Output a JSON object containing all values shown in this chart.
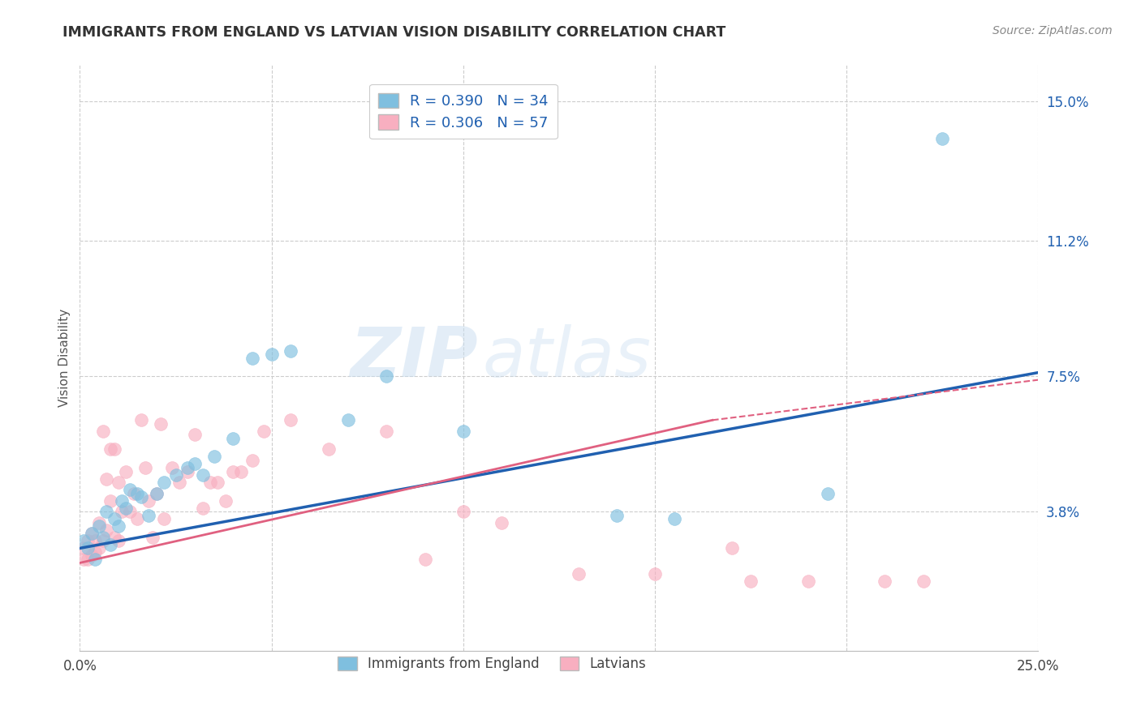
{
  "title": "IMMIGRANTS FROM ENGLAND VS LATVIAN VISION DISABILITY CORRELATION CHART",
  "source": "Source: ZipAtlas.com",
  "ylabel": "Vision Disability",
  "xlim": [
    0.0,
    0.25
  ],
  "ylim": [
    0.0,
    0.16
  ],
  "xtick_vals": [
    0.0,
    0.05,
    0.1,
    0.15,
    0.2,
    0.25
  ],
  "xtick_labels": [
    "0.0%",
    "",
    "",
    "",
    "",
    "25.0%"
  ],
  "ytick_labels_right": [
    "15.0%",
    "11.2%",
    "7.5%",
    "3.8%"
  ],
  "ytick_vals_right": [
    0.15,
    0.112,
    0.075,
    0.038
  ],
  "blue_R": 0.39,
  "blue_N": 34,
  "pink_R": 0.306,
  "pink_N": 57,
  "blue_color": "#7fbfdf",
  "pink_color": "#f8afc0",
  "blue_line_color": "#2060b0",
  "pink_line_color": "#e06080",
  "blue_line": {
    "x0": 0.0,
    "y0": 0.028,
    "x1": 0.25,
    "y1": 0.076
  },
  "pink_line_solid": {
    "x0": 0.0,
    "y0": 0.024,
    "x1": 0.165,
    "y1": 0.063
  },
  "pink_line_dashed": {
    "x0": 0.165,
    "y0": 0.063,
    "x1": 0.25,
    "y1": 0.074
  },
  "blue_points_x": [
    0.001,
    0.002,
    0.003,
    0.004,
    0.005,
    0.006,
    0.007,
    0.008,
    0.009,
    0.01,
    0.011,
    0.012,
    0.013,
    0.015,
    0.016,
    0.018,
    0.02,
    0.022,
    0.025,
    0.028,
    0.03,
    0.032,
    0.035,
    0.04,
    0.045,
    0.05,
    0.055,
    0.07,
    0.08,
    0.1,
    0.14,
    0.155,
    0.195,
    0.225
  ],
  "blue_points_y": [
    0.03,
    0.028,
    0.032,
    0.025,
    0.034,
    0.031,
    0.038,
    0.029,
    0.036,
    0.034,
    0.041,
    0.039,
    0.044,
    0.043,
    0.042,
    0.037,
    0.043,
    0.046,
    0.048,
    0.05,
    0.051,
    0.048,
    0.053,
    0.058,
    0.08,
    0.081,
    0.082,
    0.063,
    0.075,
    0.06,
    0.037,
    0.036,
    0.043,
    0.14
  ],
  "pink_points_x": [
    0.001,
    0.001,
    0.002,
    0.002,
    0.003,
    0.003,
    0.004,
    0.004,
    0.005,
    0.005,
    0.006,
    0.006,
    0.007,
    0.007,
    0.008,
    0.008,
    0.009,
    0.009,
    0.01,
    0.01,
    0.011,
    0.012,
    0.013,
    0.014,
    0.015,
    0.016,
    0.017,
    0.018,
    0.019,
    0.02,
    0.021,
    0.022,
    0.024,
    0.026,
    0.028,
    0.03,
    0.032,
    0.034,
    0.036,
    0.038,
    0.04,
    0.042,
    0.045,
    0.048,
    0.055,
    0.065,
    0.08,
    0.09,
    0.1,
    0.11,
    0.13,
    0.15,
    0.17,
    0.175,
    0.19,
    0.21,
    0.22
  ],
  "pink_points_y": [
    0.025,
    0.028,
    0.03,
    0.025,
    0.026,
    0.032,
    0.027,
    0.03,
    0.028,
    0.035,
    0.06,
    0.03,
    0.033,
    0.047,
    0.055,
    0.041,
    0.031,
    0.055,
    0.03,
    0.046,
    0.038,
    0.049,
    0.038,
    0.043,
    0.036,
    0.063,
    0.05,
    0.041,
    0.031,
    0.043,
    0.062,
    0.036,
    0.05,
    0.046,
    0.049,
    0.059,
    0.039,
    0.046,
    0.046,
    0.041,
    0.049,
    0.049,
    0.052,
    0.06,
    0.063,
    0.055,
    0.06,
    0.025,
    0.038,
    0.035,
    0.021,
    0.021,
    0.028,
    0.019,
    0.019,
    0.019,
    0.019
  ],
  "watermark_zip": "ZIP",
  "watermark_atlas": "atlas",
  "background_color": "#ffffff",
  "grid_color": "#cccccc"
}
